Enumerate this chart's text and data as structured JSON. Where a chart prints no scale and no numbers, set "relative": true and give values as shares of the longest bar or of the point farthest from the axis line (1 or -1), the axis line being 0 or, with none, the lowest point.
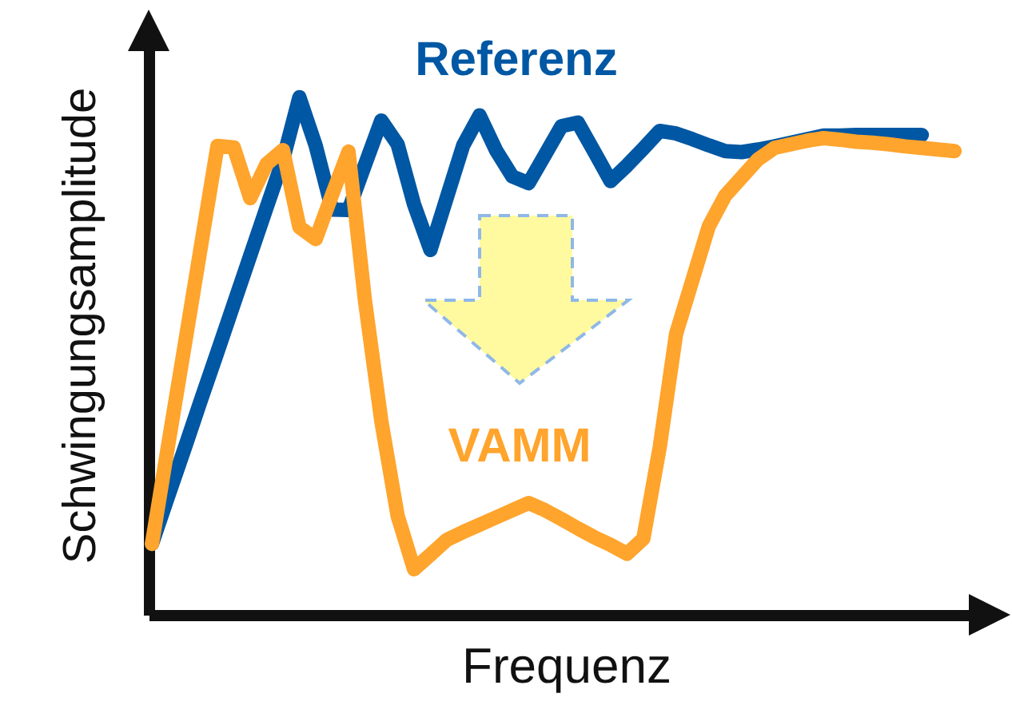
{
  "chart_data": {
    "type": "line",
    "relative": true,
    "xlabel": "Frequenz",
    "ylabel": "Schwingungsamplitude",
    "tick_labels": false,
    "categories": [
      null,
      null,
      null,
      null,
      null,
      null,
      null,
      null,
      null,
      null,
      null,
      null,
      null,
      null,
      null,
      null,
      null,
      null,
      null,
      null,
      null,
      null,
      null,
      null,
      null,
      null,
      null,
      null,
      null,
      null,
      null,
      null,
      null,
      null,
      null,
      null,
      null,
      null,
      null,
      null,
      null,
      null,
      null,
      null,
      null,
      null,
      null,
      null,
      null,
      null
    ],
    "series": [
      {
        "name": "Referenz",
        "color": "#0057a3",
        "values": [
          0.137,
          0.23,
          0.322,
          0.416,
          0.508,
          0.601,
          0.694,
          0.787,
          0.879,
          1.0,
          0.906,
          0.783,
          0.782,
          0.869,
          0.955,
          0.909,
          0.793,
          0.705,
          0.806,
          0.907,
          0.965,
          0.898,
          0.847,
          0.834,
          0.889,
          0.944,
          0.951,
          0.895,
          0.838,
          0.868,
          0.901,
          0.935,
          0.93,
          0.919,
          0.907,
          0.896,
          0.894,
          0.899,
          0.905,
          0.912,
          0.919,
          0.926,
          0.926,
          0.927,
          0.927,
          0.927,
          0.927,
          0.927,
          null,
          null
        ]
      },
      {
        "name": "VAMM",
        "color": "#ffa42c",
        "values": [
          0.137,
          0.33,
          0.521,
          0.714,
          0.906,
          0.903,
          0.805,
          0.871,
          0.898,
          0.749,
          0.726,
          0.812,
          0.895,
          0.608,
          0.375,
          0.191,
          0.088,
          0.116,
          0.145,
          0.16,
          0.174,
          0.188,
          0.202,
          0.216,
          0.202,
          0.185,
          0.167,
          0.15,
          0.135,
          0.118,
          0.147,
          0.324,
          0.543,
          0.647,
          0.751,
          0.81,
          0.845,
          0.88,
          0.902,
          0.909,
          0.916,
          0.921,
          0.918,
          0.914,
          0.912,
          0.909,
          0.905,
          0.902,
          0.899,
          0.896
        ]
      }
    ]
  }
}
